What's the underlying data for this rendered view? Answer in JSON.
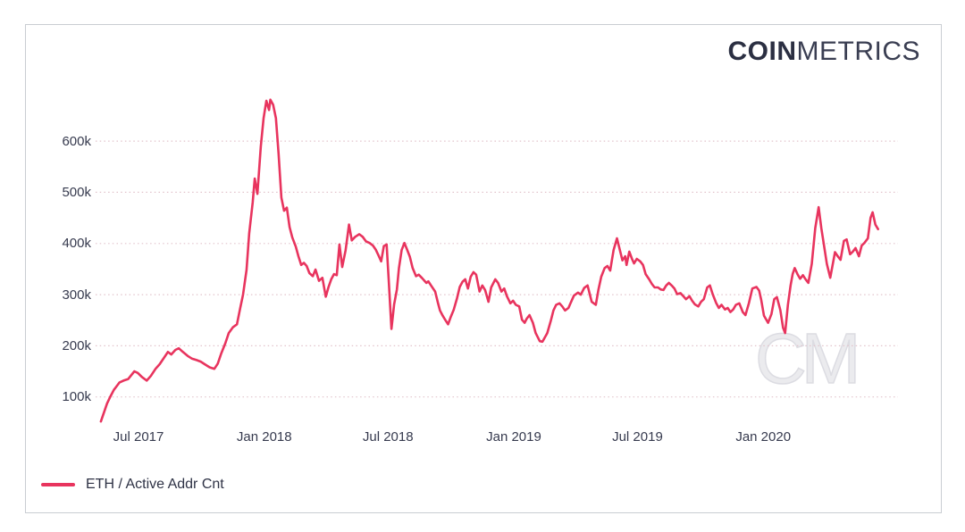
{
  "header": {
    "logo_bold": "COIN",
    "logo_light": "METRICS"
  },
  "watermark_text": "CM",
  "legend": [
    {
      "label": "ETH / Active Addr Cnt",
      "color": "#e8345e"
    }
  ],
  "colors": {
    "line": "#e8345e",
    "gridline": "#e2c3cb",
    "tick_text": "#363a4e",
    "logo_text": "#2b2f42",
    "frame_border": "#c9cdd2",
    "watermark": "#dcdce2"
  },
  "chart_data": {
    "type": "line",
    "title": "",
    "xlabel": "",
    "ylabel": "",
    "unit": "active addresses (thousands)",
    "grid": "horizontal dotted",
    "legend_position": "bottom-left",
    "ylim_thousands": [
      40,
      700
    ],
    "x_range": [
      "2017-05-07",
      "2020-06-17"
    ],
    "y_ticks": [
      {
        "label": "100k",
        "value": 100
      },
      {
        "label": "200k",
        "value": 200
      },
      {
        "label": "300k",
        "value": 300
      },
      {
        "label": "400k",
        "value": 400
      },
      {
        "label": "500k",
        "value": 500
      },
      {
        "label": "600k",
        "value": 600
      }
    ],
    "x_ticks": [
      {
        "label": "Jul 2017",
        "date": "2017-07-01"
      },
      {
        "label": "Jan 2018",
        "date": "2018-01-01"
      },
      {
        "label": "Jul 2018",
        "date": "2018-07-01"
      },
      {
        "label": "Jan 2019",
        "date": "2019-01-01"
      },
      {
        "label": "Jul 2019",
        "date": "2019-07-01"
      },
      {
        "label": "Jan 2020",
        "date": "2020-01-01"
      }
    ],
    "series": [
      {
        "name": "ETH / Active Addr Cnt",
        "color": "#e8345e",
        "values_unit": "thousands",
        "points": [
          [
            "2017-05-07",
            52
          ],
          [
            "2017-05-16",
            87
          ],
          [
            "2017-05-21",
            101
          ],
          [
            "2017-05-26",
            114
          ],
          [
            "2017-06-03",
            128
          ],
          [
            "2017-06-09",
            132
          ],
          [
            "2017-06-16",
            135
          ],
          [
            "2017-06-25",
            150
          ],
          [
            "2017-06-30",
            147
          ],
          [
            "2017-07-06",
            139
          ],
          [
            "2017-07-13",
            132
          ],
          [
            "2017-07-19",
            141
          ],
          [
            "2017-07-26",
            155
          ],
          [
            "2017-08-01",
            164
          ],
          [
            "2017-08-08",
            178
          ],
          [
            "2017-08-13",
            188
          ],
          [
            "2017-08-18",
            183
          ],
          [
            "2017-08-24",
            192
          ],
          [
            "2017-08-29",
            195
          ],
          [
            "2017-09-04",
            188
          ],
          [
            "2017-09-11",
            180
          ],
          [
            "2017-09-17",
            175
          ],
          [
            "2017-09-24",
            172
          ],
          [
            "2017-09-30",
            169
          ],
          [
            "2017-10-07",
            163
          ],
          [
            "2017-10-13",
            158
          ],
          [
            "2017-10-20",
            155
          ],
          [
            "2017-10-25",
            165
          ],
          [
            "2017-10-30",
            185
          ],
          [
            "2017-11-05",
            205
          ],
          [
            "2017-11-10",
            225
          ],
          [
            "2017-11-16",
            236
          ],
          [
            "2017-11-22",
            242
          ],
          [
            "2017-11-27",
            275
          ],
          [
            "2017-12-01",
            300
          ],
          [
            "2017-12-06",
            348
          ],
          [
            "2017-12-10",
            420
          ],
          [
            "2017-12-15",
            480
          ],
          [
            "2017-12-18",
            527
          ],
          [
            "2017-12-22",
            497
          ],
          [
            "2017-12-27",
            590
          ],
          [
            "2017-12-31",
            645
          ],
          [
            "2018-01-04",
            679
          ],
          [
            "2018-01-08",
            661
          ],
          [
            "2018-01-10",
            681
          ],
          [
            "2018-01-14",
            671
          ],
          [
            "2018-01-18",
            645
          ],
          [
            "2018-01-22",
            575
          ],
          [
            "2018-01-26",
            490
          ],
          [
            "2018-01-30",
            464
          ],
          [
            "2018-02-03",
            470
          ],
          [
            "2018-02-07",
            432
          ],
          [
            "2018-02-11",
            412
          ],
          [
            "2018-02-16",
            394
          ],
          [
            "2018-02-20",
            375
          ],
          [
            "2018-02-24",
            358
          ],
          [
            "2018-02-28",
            362
          ],
          [
            "2018-03-04",
            356
          ],
          [
            "2018-03-08",
            342
          ],
          [
            "2018-03-13",
            336
          ],
          [
            "2018-03-17",
            349
          ],
          [
            "2018-03-22",
            327
          ],
          [
            "2018-03-27",
            333
          ],
          [
            "2018-04-01",
            296
          ],
          [
            "2018-04-05",
            315
          ],
          [
            "2018-04-09",
            330
          ],
          [
            "2018-04-13",
            340
          ],
          [
            "2018-04-17",
            338
          ],
          [
            "2018-04-21",
            398
          ],
          [
            "2018-04-25",
            354
          ],
          [
            "2018-04-30",
            387
          ],
          [
            "2018-05-05",
            437
          ],
          [
            "2018-05-09",
            406
          ],
          [
            "2018-05-14",
            413
          ],
          [
            "2018-05-20",
            418
          ],
          [
            "2018-05-25",
            413
          ],
          [
            "2018-05-30",
            404
          ],
          [
            "2018-06-04",
            401
          ],
          [
            "2018-06-09",
            396
          ],
          [
            "2018-06-13",
            388
          ],
          [
            "2018-06-17",
            377
          ],
          [
            "2018-06-21",
            365
          ],
          [
            "2018-06-25",
            395
          ],
          [
            "2018-06-29",
            398
          ],
          [
            "2018-07-02",
            330
          ],
          [
            "2018-07-06",
            233
          ],
          [
            "2018-07-10",
            281
          ],
          [
            "2018-07-14",
            310
          ],
          [
            "2018-07-17",
            352
          ],
          [
            "2018-07-21",
            387
          ],
          [
            "2018-07-25",
            401
          ],
          [
            "2018-07-29",
            388
          ],
          [
            "2018-08-02",
            374
          ],
          [
            "2018-08-06",
            352
          ],
          [
            "2018-08-11",
            336
          ],
          [
            "2018-08-15",
            339
          ],
          [
            "2018-08-20",
            332
          ],
          [
            "2018-08-26",
            323
          ],
          [
            "2018-08-29",
            326
          ],
          [
            "2018-09-02",
            318
          ],
          [
            "2018-09-08",
            306
          ],
          [
            "2018-09-12",
            284
          ],
          [
            "2018-09-15",
            269
          ],
          [
            "2018-09-19",
            259
          ],
          [
            "2018-09-23",
            250
          ],
          [
            "2018-09-27",
            242
          ],
          [
            "2018-10-01",
            257
          ],
          [
            "2018-10-05",
            270
          ],
          [
            "2018-10-10",
            293
          ],
          [
            "2018-10-14",
            315
          ],
          [
            "2018-10-18",
            325
          ],
          [
            "2018-10-22",
            330
          ],
          [
            "2018-10-26",
            312
          ],
          [
            "2018-10-30",
            335
          ],
          [
            "2018-11-03",
            344
          ],
          [
            "2018-11-07",
            339
          ],
          [
            "2018-11-12",
            306
          ],
          [
            "2018-11-16",
            318
          ],
          [
            "2018-11-20",
            309
          ],
          [
            "2018-11-25",
            286
          ],
          [
            "2018-11-29",
            314
          ],
          [
            "2018-12-05",
            330
          ],
          [
            "2018-12-09",
            323
          ],
          [
            "2018-12-14",
            306
          ],
          [
            "2018-12-18",
            312
          ],
          [
            "2018-12-22",
            297
          ],
          [
            "2018-12-27",
            283
          ],
          [
            "2018-12-31",
            288
          ],
          [
            "2019-01-04",
            280
          ],
          [
            "2019-01-09",
            277
          ],
          [
            "2019-01-13",
            251
          ],
          [
            "2019-01-17",
            245
          ],
          [
            "2019-01-20",
            253
          ],
          [
            "2019-01-24",
            260
          ],
          [
            "2019-01-29",
            245
          ],
          [
            "2019-02-02",
            225
          ],
          [
            "2019-02-08",
            209
          ],
          [
            "2019-02-12",
            208
          ],
          [
            "2019-02-19",
            225
          ],
          [
            "2019-02-24",
            248
          ],
          [
            "2019-02-28",
            269
          ],
          [
            "2019-03-04",
            280
          ],
          [
            "2019-03-09",
            283
          ],
          [
            "2019-03-13",
            277
          ],
          [
            "2019-03-17",
            269
          ],
          [
            "2019-03-22",
            274
          ],
          [
            "2019-03-26",
            286
          ],
          [
            "2019-03-30",
            298
          ],
          [
            "2019-04-05",
            304
          ],
          [
            "2019-04-09",
            300
          ],
          [
            "2019-04-14",
            313
          ],
          [
            "2019-04-19",
            318
          ],
          [
            "2019-04-25",
            286
          ],
          [
            "2019-05-01",
            280
          ],
          [
            "2019-05-05",
            310
          ],
          [
            "2019-05-09",
            335
          ],
          [
            "2019-05-14",
            352
          ],
          [
            "2019-05-18",
            356
          ],
          [
            "2019-05-22",
            347
          ],
          [
            "2019-05-27",
            387
          ],
          [
            "2019-06-01",
            410
          ],
          [
            "2019-06-05",
            388
          ],
          [
            "2019-06-09",
            367
          ],
          [
            "2019-06-13",
            375
          ],
          [
            "2019-06-15",
            358
          ],
          [
            "2019-06-19",
            384
          ],
          [
            "2019-06-23",
            370
          ],
          [
            "2019-06-26",
            361
          ],
          [
            "2019-06-30",
            370
          ],
          [
            "2019-07-05",
            365
          ],
          [
            "2019-07-09",
            358
          ],
          [
            "2019-07-13",
            340
          ],
          [
            "2019-07-18",
            330
          ],
          [
            "2019-07-22",
            321
          ],
          [
            "2019-07-26",
            314
          ],
          [
            "2019-07-31",
            314
          ],
          [
            "2019-08-04",
            310
          ],
          [
            "2019-08-08",
            309
          ],
          [
            "2019-08-12",
            318
          ],
          [
            "2019-08-16",
            323
          ],
          [
            "2019-08-20",
            318
          ],
          [
            "2019-08-24",
            312
          ],
          [
            "2019-08-28",
            301
          ],
          [
            "2019-09-02",
            303
          ],
          [
            "2019-09-06",
            297
          ],
          [
            "2019-09-10",
            291
          ],
          [
            "2019-09-15",
            297
          ],
          [
            "2019-09-19",
            288
          ],
          [
            "2019-09-23",
            281
          ],
          [
            "2019-09-28",
            277
          ],
          [
            "2019-10-02",
            286
          ],
          [
            "2019-10-06",
            291
          ],
          [
            "2019-10-11",
            314
          ],
          [
            "2019-10-15",
            318
          ],
          [
            "2019-10-19",
            301
          ],
          [
            "2019-10-24",
            284
          ],
          [
            "2019-10-28",
            274
          ],
          [
            "2019-11-01",
            280
          ],
          [
            "2019-11-06",
            271
          ],
          [
            "2019-11-10",
            274
          ],
          [
            "2019-11-14",
            266
          ],
          [
            "2019-11-18",
            271
          ],
          [
            "2019-11-22",
            280
          ],
          [
            "2019-11-27",
            283
          ],
          [
            "2019-12-02",
            266
          ],
          [
            "2019-12-06",
            260
          ],
          [
            "2019-12-11",
            283
          ],
          [
            "2019-12-16",
            312
          ],
          [
            "2019-12-22",
            315
          ],
          [
            "2019-12-26",
            308
          ],
          [
            "2019-12-29",
            290
          ],
          [
            "2020-01-02",
            259
          ],
          [
            "2020-01-08",
            245
          ],
          [
            "2020-01-13",
            262
          ],
          [
            "2020-01-17",
            291
          ],
          [
            "2020-01-21",
            295
          ],
          [
            "2020-01-26",
            270
          ],
          [
            "2020-01-30",
            235
          ],
          [
            "2020-02-02",
            225
          ],
          [
            "2020-02-06",
            280
          ],
          [
            "2020-02-10",
            318
          ],
          [
            "2020-02-13",
            340
          ],
          [
            "2020-02-16",
            352
          ],
          [
            "2020-02-20",
            340
          ],
          [
            "2020-02-24",
            331
          ],
          [
            "2020-02-28",
            338
          ],
          [
            "2020-03-03",
            330
          ],
          [
            "2020-03-07",
            323
          ],
          [
            "2020-03-12",
            360
          ],
          [
            "2020-03-17",
            430
          ],
          [
            "2020-03-22",
            471
          ],
          [
            "2020-03-26",
            430
          ],
          [
            "2020-03-30",
            395
          ],
          [
            "2020-04-03",
            360
          ],
          [
            "2020-04-08",
            333
          ],
          [
            "2020-04-15",
            383
          ],
          [
            "2020-04-19",
            375
          ],
          [
            "2020-04-23",
            368
          ],
          [
            "2020-04-28",
            405
          ],
          [
            "2020-05-02",
            408
          ],
          [
            "2020-05-07",
            379
          ],
          [
            "2020-05-11",
            384
          ],
          [
            "2020-05-15",
            391
          ],
          [
            "2020-05-20",
            375
          ],
          [
            "2020-05-24",
            396
          ],
          [
            "2020-05-28",
            401
          ],
          [
            "2020-06-02",
            410
          ],
          [
            "2020-06-06",
            450
          ],
          [
            "2020-06-09",
            461
          ],
          [
            "2020-06-13",
            437
          ],
          [
            "2020-06-17",
            428
          ]
        ]
      }
    ]
  }
}
